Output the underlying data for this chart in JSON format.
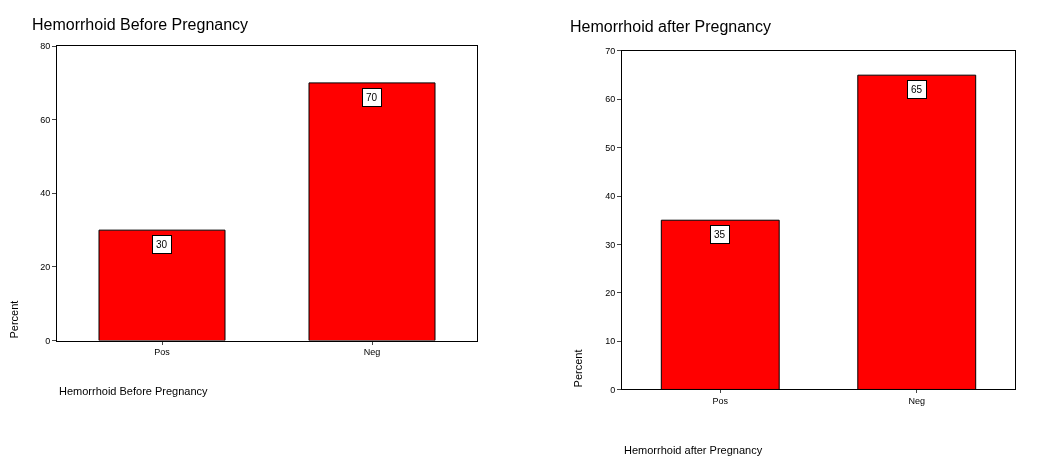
{
  "chart_data": [
    {
      "type": "bar",
      "title": "Hemorrhoid Before Pregnancy",
      "xlabel": "Hemorrhoid Before Pregnancy",
      "ylabel": "Percent",
      "categories": [
        "Pos",
        "Neg"
      ],
      "values": [
        30,
        70
      ],
      "color": "#ff0000",
      "ylim": [
        0,
        80
      ],
      "yticks": [
        0,
        20,
        40,
        60,
        80
      ],
      "data_labels": true
    },
    {
      "type": "bar",
      "title": "Hemorrhoid after Pregnancy",
      "xlabel": "Hemorrhoid after Pregnancy",
      "ylabel": "Percent",
      "categories": [
        "Pos",
        "Neg"
      ],
      "values": [
        35,
        65
      ],
      "color": "#ff0000",
      "ylim": [
        0,
        70
      ],
      "yticks": [
        0,
        10,
        20,
        30,
        40,
        50,
        60,
        70
      ],
      "data_labels": true
    }
  ]
}
